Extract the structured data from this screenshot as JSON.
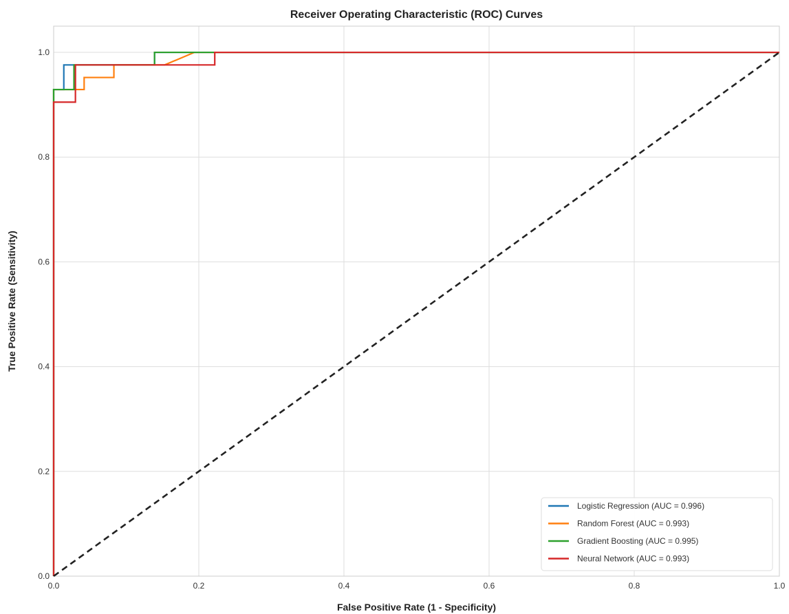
{
  "chart_data": {
    "type": "line",
    "title": "Receiver Operating Characteristic (ROC) Curves",
    "xlabel": "False Positive Rate (1 - Specificity)",
    "ylabel": "True Positive Rate (Sensitivity)",
    "xlim": [
      0,
      1
    ],
    "ylim": [
      0,
      1.05
    ],
    "xticks": [
      0.0,
      0.2,
      0.4,
      0.6,
      0.8,
      1.0
    ],
    "xtick_labels": [
      "0.0",
      "0.2",
      "0.4",
      "0.6",
      "0.8",
      "1.0"
    ],
    "yticks": [
      0.0,
      0.2,
      0.4,
      0.6,
      0.8,
      1.0
    ],
    "ytick_labels": [
      "0.0",
      "0.2",
      "0.4",
      "0.6",
      "0.8",
      "1.0"
    ],
    "grid": true,
    "legend_position": "lower-right",
    "series": [
      {
        "name": "Logistic Regression (AUC = 0.996)",
        "color": "#1f77b4",
        "x": [
          0,
          0,
          0.014,
          0.014,
          0.028,
          0.028,
          0.139,
          0.139,
          1.0
        ],
        "y": [
          0,
          0.929,
          0.929,
          0.976,
          0.976,
          0.976,
          0.976,
          1.0,
          1.0
        ]
      },
      {
        "name": "Random Forest (AUC = 0.993)",
        "color": "#ff7f0e",
        "x": [
          0,
          0,
          0.042,
          0.042,
          0.083,
          0.083,
          0.153,
          0.194,
          1.0
        ],
        "y": [
          0,
          0.929,
          0.929,
          0.952,
          0.952,
          0.976,
          0.976,
          1.0,
          1.0
        ]
      },
      {
        "name": "Gradient Boosting (AUC = 0.995)",
        "color": "#2ca02c",
        "x": [
          0,
          0,
          0.028,
          0.028,
          0.139,
          0.139,
          1.0
        ],
        "y": [
          0,
          0.929,
          0.929,
          0.976,
          0.976,
          1.0,
          1.0
        ]
      },
      {
        "name": "Neural Network (AUC = 0.993)",
        "color": "#d62728",
        "x": [
          0,
          0,
          0.03,
          0.03,
          0.222,
          0.222,
          1.0
        ],
        "y": [
          0,
          0.905,
          0.905,
          0.976,
          0.976,
          1.0,
          1.0
        ]
      }
    ],
    "reference_line": {
      "x": [
        0,
        1
      ],
      "y": [
        0,
        1
      ],
      "color": "#222222",
      "style": "dashed"
    }
  }
}
